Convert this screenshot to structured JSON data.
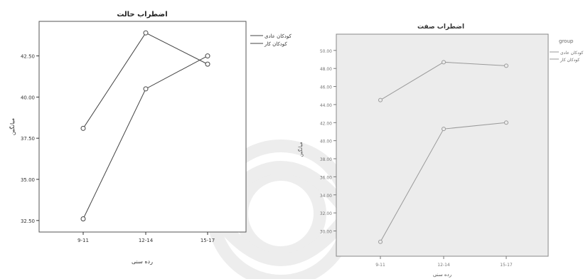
{
  "chart_data": [
    {
      "type": "line",
      "title": "اضطراب حالت",
      "xlabel": "رده سنی",
      "ylabel": "میانگین",
      "categories": [
        "9-11",
        "12-14",
        "15-17"
      ],
      "ylim": [
        31.8,
        44.6
      ],
      "yticks": [
        "32.50",
        "35.00",
        "37.50",
        "40.00",
        "42.50"
      ],
      "ytick_values": [
        32.5,
        35.0,
        37.5,
        40.0,
        42.5
      ],
      "series": [
        {
          "name": "کودکان عادی",
          "values": [
            38.1,
            43.9,
            42.0
          ]
        },
        {
          "name": "کودکان کار",
          "values": [
            32.6,
            40.5,
            42.5
          ]
        }
      ],
      "legend_placement": "right",
      "plot_bg": "#ffffff",
      "line_color": "#444444"
    },
    {
      "type": "line",
      "title": "اضطراب صفت",
      "xlabel": "رده سنی",
      "ylabel": "میانگین",
      "legend_title": "group",
      "categories": [
        "9-11",
        "12-14",
        "15-17"
      ],
      "ylim": [
        27.2,
        51.8
      ],
      "yticks": [
        "30.00",
        "32.00",
        "34.00",
        "36.00",
        "38.00",
        "40.00",
        "42.00",
        "44.00",
        "46.00",
        "48.00",
        "50.00"
      ],
      "ytick_values": [
        30,
        32,
        34,
        36,
        38,
        40,
        42,
        44,
        46,
        48,
        50
      ],
      "series": [
        {
          "name": "کودکان عادی",
          "values": [
            44.5,
            48.7,
            48.3
          ]
        },
        {
          "name": "کودکان کار",
          "values": [
            28.8,
            41.3,
            42.0
          ]
        }
      ],
      "legend_placement": "right",
      "plot_bg": "#ececec",
      "line_color": "#9a9a9a"
    }
  ]
}
